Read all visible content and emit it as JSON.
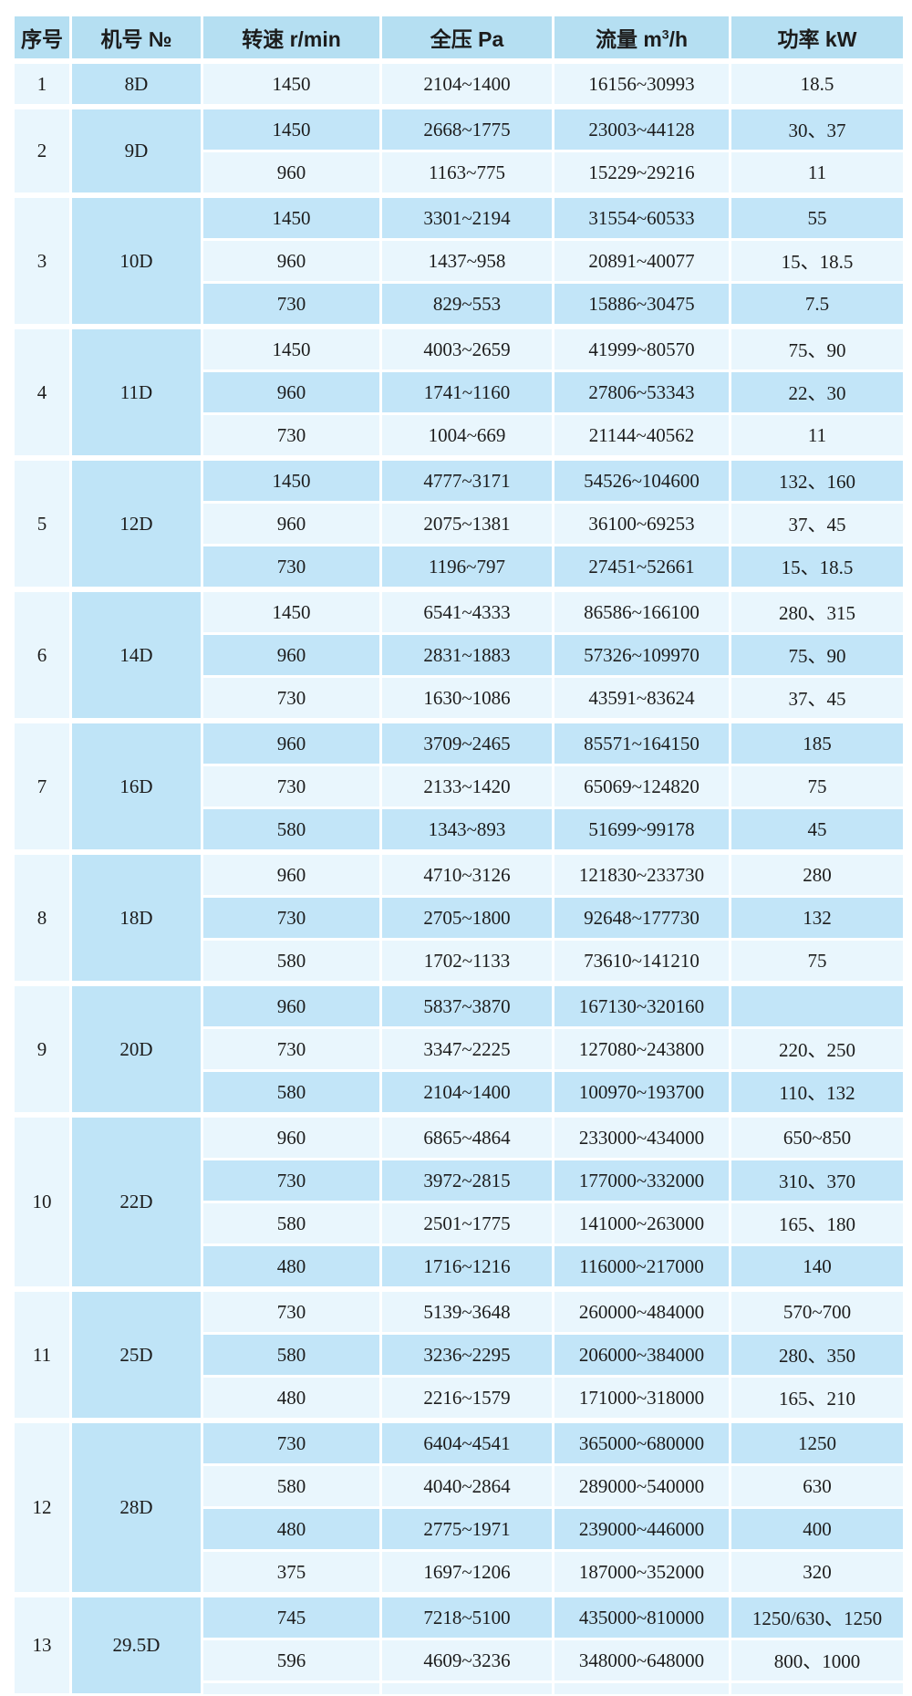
{
  "table": {
    "headers": [
      "序号",
      "机号 №",
      "转速 r/min",
      "全压 Pa",
      "流量 m³/h",
      "功率 kW"
    ],
    "column_keys": [
      "speed",
      "pressure",
      "flow",
      "power"
    ],
    "groups": [
      {
        "no": "1",
        "model": "8D",
        "rows": [
          [
            "1450",
            "2104~1400",
            "16156~30993",
            "18.5"
          ]
        ]
      },
      {
        "no": "2",
        "model": "9D",
        "rows": [
          [
            "1450",
            "2668~1775",
            "23003~44128",
            "30、37"
          ],
          [
            "960",
            "1163~775",
            "15229~29216",
            "11"
          ]
        ]
      },
      {
        "no": "3",
        "model": "10D",
        "rows": [
          [
            "1450",
            "3301~2194",
            "31554~60533",
            "55"
          ],
          [
            "960",
            "1437~958",
            "20891~40077",
            "15、18.5"
          ],
          [
            "730",
            "829~553",
            "15886~30475",
            "7.5"
          ]
        ]
      },
      {
        "no": "4",
        "model": "11D",
        "rows": [
          [
            "1450",
            "4003~2659",
            "41999~80570",
            "75、90"
          ],
          [
            "960",
            "1741~1160",
            "27806~53343",
            "22、30"
          ],
          [
            "730",
            "1004~669",
            "21144~40562",
            "11"
          ]
        ]
      },
      {
        "no": "5",
        "model": "12D",
        "rows": [
          [
            "1450",
            "4777~3171",
            "54526~104600",
            "132、160"
          ],
          [
            "960",
            "2075~1381",
            "36100~69253",
            "37、45"
          ],
          [
            "730",
            "1196~797",
            "27451~52661",
            "15、18.5"
          ]
        ]
      },
      {
        "no": "6",
        "model": "14D",
        "rows": [
          [
            "1450",
            "6541~4333",
            "86586~166100",
            "280、315"
          ],
          [
            "960",
            "2831~1883",
            "57326~109970",
            "75、90"
          ],
          [
            "730",
            "1630~1086",
            "43591~83624",
            "37、45"
          ]
        ]
      },
      {
        "no": "7",
        "model": "16D",
        "rows": [
          [
            "960",
            "3709~2465",
            "85571~164150",
            "185"
          ],
          [
            "730",
            "2133~1420",
            "65069~124820",
            "75"
          ],
          [
            "580",
            "1343~893",
            "51699~99178",
            "45"
          ]
        ]
      },
      {
        "no": "8",
        "model": "18D",
        "rows": [
          [
            "960",
            "4710~3126",
            "121830~233730",
            "280"
          ],
          [
            "730",
            "2705~1800",
            "92648~177730",
            "132"
          ],
          [
            "580",
            "1702~1133",
            "73610~141210",
            "75"
          ]
        ]
      },
      {
        "no": "9",
        "model": "20D",
        "rows": [
          [
            "960",
            "5837~3870",
            "167130~320160",
            ""
          ],
          [
            "730",
            "3347~2225",
            "127080~243800",
            "220、250"
          ],
          [
            "580",
            "2104~1400",
            "100970~193700",
            "110、132"
          ]
        ]
      },
      {
        "no": "10",
        "model": "22D",
        "rows": [
          [
            "960",
            "6865~4864",
            "233000~434000",
            "650~850"
          ],
          [
            "730",
            "3972~2815",
            "177000~332000",
            "310、370"
          ],
          [
            "580",
            "2501~1775",
            "141000~263000",
            "165、180"
          ],
          [
            "480",
            "1716~1216",
            "116000~217000",
            "140"
          ]
        ]
      },
      {
        "no": "11",
        "model": "25D",
        "rows": [
          [
            "730",
            "5139~3648",
            "260000~484000",
            "570~700"
          ],
          [
            "580",
            "3236~2295",
            "206000~384000",
            "280、350"
          ],
          [
            "480",
            "2216~1579",
            "171000~318000",
            "165、210"
          ]
        ]
      },
      {
        "no": "12",
        "model": "28D",
        "rows": [
          [
            "730",
            "6404~4541",
            "365000~680000",
            "1250"
          ],
          [
            "580",
            "4040~2864",
            "289000~540000",
            "630"
          ],
          [
            "480",
            "2775~1971",
            "239000~446000",
            "400"
          ],
          [
            "375",
            "1697~1206",
            "187000~352000",
            "320"
          ]
        ]
      },
      {
        "no": "13",
        "model": "29.5D",
        "rows": [
          [
            "745",
            "7218~5100",
            "435000~810000",
            "1250/630、1250"
          ],
          [
            "596",
            "4609~3236",
            "348000~648000",
            "800、1000"
          ]
        ]
      }
    ],
    "colors": {
      "header_bg": "#b5dff2",
      "row_light_bg": "#e9f6fd",
      "row_dark_bg": "#c2e5f8",
      "model_cell_bg": "#bfe4f7",
      "grid_line": "#ffffff",
      "text": "#1c1c1c"
    }
  }
}
